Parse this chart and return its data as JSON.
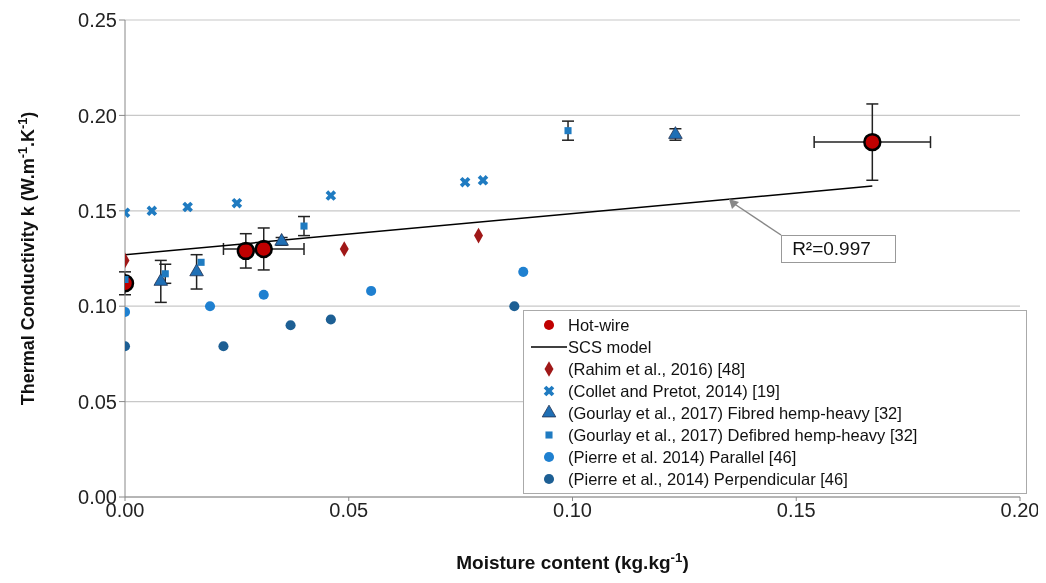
{
  "chart_data": {
    "type": "scatter",
    "xlabel": "Moisture content (kg.kg$^{-1}$)",
    "ylabel": "Thermal Conductivity k (W.m$^{-1}$.K$^{-1}$)",
    "xlim": [
      0,
      0.2
    ],
    "ylim": [
      0,
      0.25
    ],
    "xticks": [
      {
        "value": 0,
        "label": "0.00"
      },
      {
        "value": 0.05,
        "label": "0.05"
      },
      {
        "value": 0.1,
        "label": "0.10"
      },
      {
        "value": 0.15,
        "label": "0.15"
      },
      {
        "value": 0.2,
        "label": "0.20"
      }
    ],
    "yticks": [
      {
        "value": 0,
        "label": "0.00"
      },
      {
        "value": 0.05,
        "label": "0.05"
      },
      {
        "value": 0.1,
        "label": "0.10"
      },
      {
        "value": 0.15,
        "label": "0.15"
      },
      {
        "value": 0.2,
        "label": "0.20"
      },
      {
        "value": 0.25,
        "label": "0.25"
      }
    ],
    "grid": "y",
    "legend": "bottom right",
    "annotations": [
      {
        "text": "R²=0.997",
        "x": 0.135,
        "y": 0.156
      }
    ],
    "series": [
      {
        "name": "Hot-wire",
        "marker": "circle",
        "color": "#c00000",
        "x": [
          0,
          0.027,
          0.031,
          0.167
        ],
        "values": [
          0.112,
          0.129,
          0.13,
          0.186
        ],
        "errors": [
          0.006,
          0.009,
          0.011,
          0.02
        ],
        "xerrors": [
          null,
          null,
          0.009,
          0.013
        ]
      },
      {
        "name": "SCS model",
        "type": "line",
        "color": "#000000",
        "x": [
          0,
          0.167
        ],
        "values": [
          0.127,
          0.163
        ]
      },
      {
        "name": "(Rahim et al., 2016) [48]",
        "marker": "diamond",
        "color": "#a01818",
        "x": [
          0,
          0.049,
          0.079
        ],
        "values": [
          0.124,
          0.13,
          0.137
        ]
      },
      {
        "name": "(Collet and Pretot, 2014) [19]",
        "marker": "cross",
        "color": "#1f7bc1",
        "x": [
          0,
          0.006,
          0.014,
          0.025,
          0.046,
          0.076,
          0.08
        ],
        "values": [
          0.149,
          0.15,
          0.152,
          0.154,
          0.158,
          0.165,
          0.166
        ]
      },
      {
        "name": "(Gourlay et al., 2017) Fibred hemp-heavy [32]",
        "marker": "triangle",
        "color": "#1f6fb5",
        "x": [
          0.008,
          0.016,
          0.035,
          0.123
        ],
        "values": [
          0.113,
          0.118,
          0.134,
          0.19
        ],
        "errors": [
          0.011,
          0.009,
          0.002,
          0.003
        ]
      },
      {
        "name": "(Gourlay et al., 2017) Defibred hemp-heavy [32]",
        "marker": "square",
        "color": "#1f7bc1",
        "x": [
          0,
          0.009,
          0.017,
          0.04,
          0.099
        ],
        "values": [
          0.114,
          0.117,
          0.123,
          0.142,
          0.192
        ],
        "errors": [
          null,
          0.005,
          null,
          0.005,
          0.005
        ]
      },
      {
        "name": "(Pierre et al. 2014) Parallel [46]",
        "marker": "circle",
        "color": "#1f80d0",
        "x": [
          0,
          0.019,
          0.031,
          0.055,
          0.089
        ],
        "values": [
          0.097,
          0.1,
          0.106,
          0.108,
          0.118
        ]
      },
      {
        "name": "(Pierre et al., 2014) Perpendicular [46]",
        "marker": "circle",
        "color": "#1d5f94",
        "x": [
          0,
          0.022,
          0.037,
          0.046,
          0.087
        ],
        "values": [
          0.079,
          0.079,
          0.09,
          0.093,
          0.1
        ]
      }
    ]
  }
}
